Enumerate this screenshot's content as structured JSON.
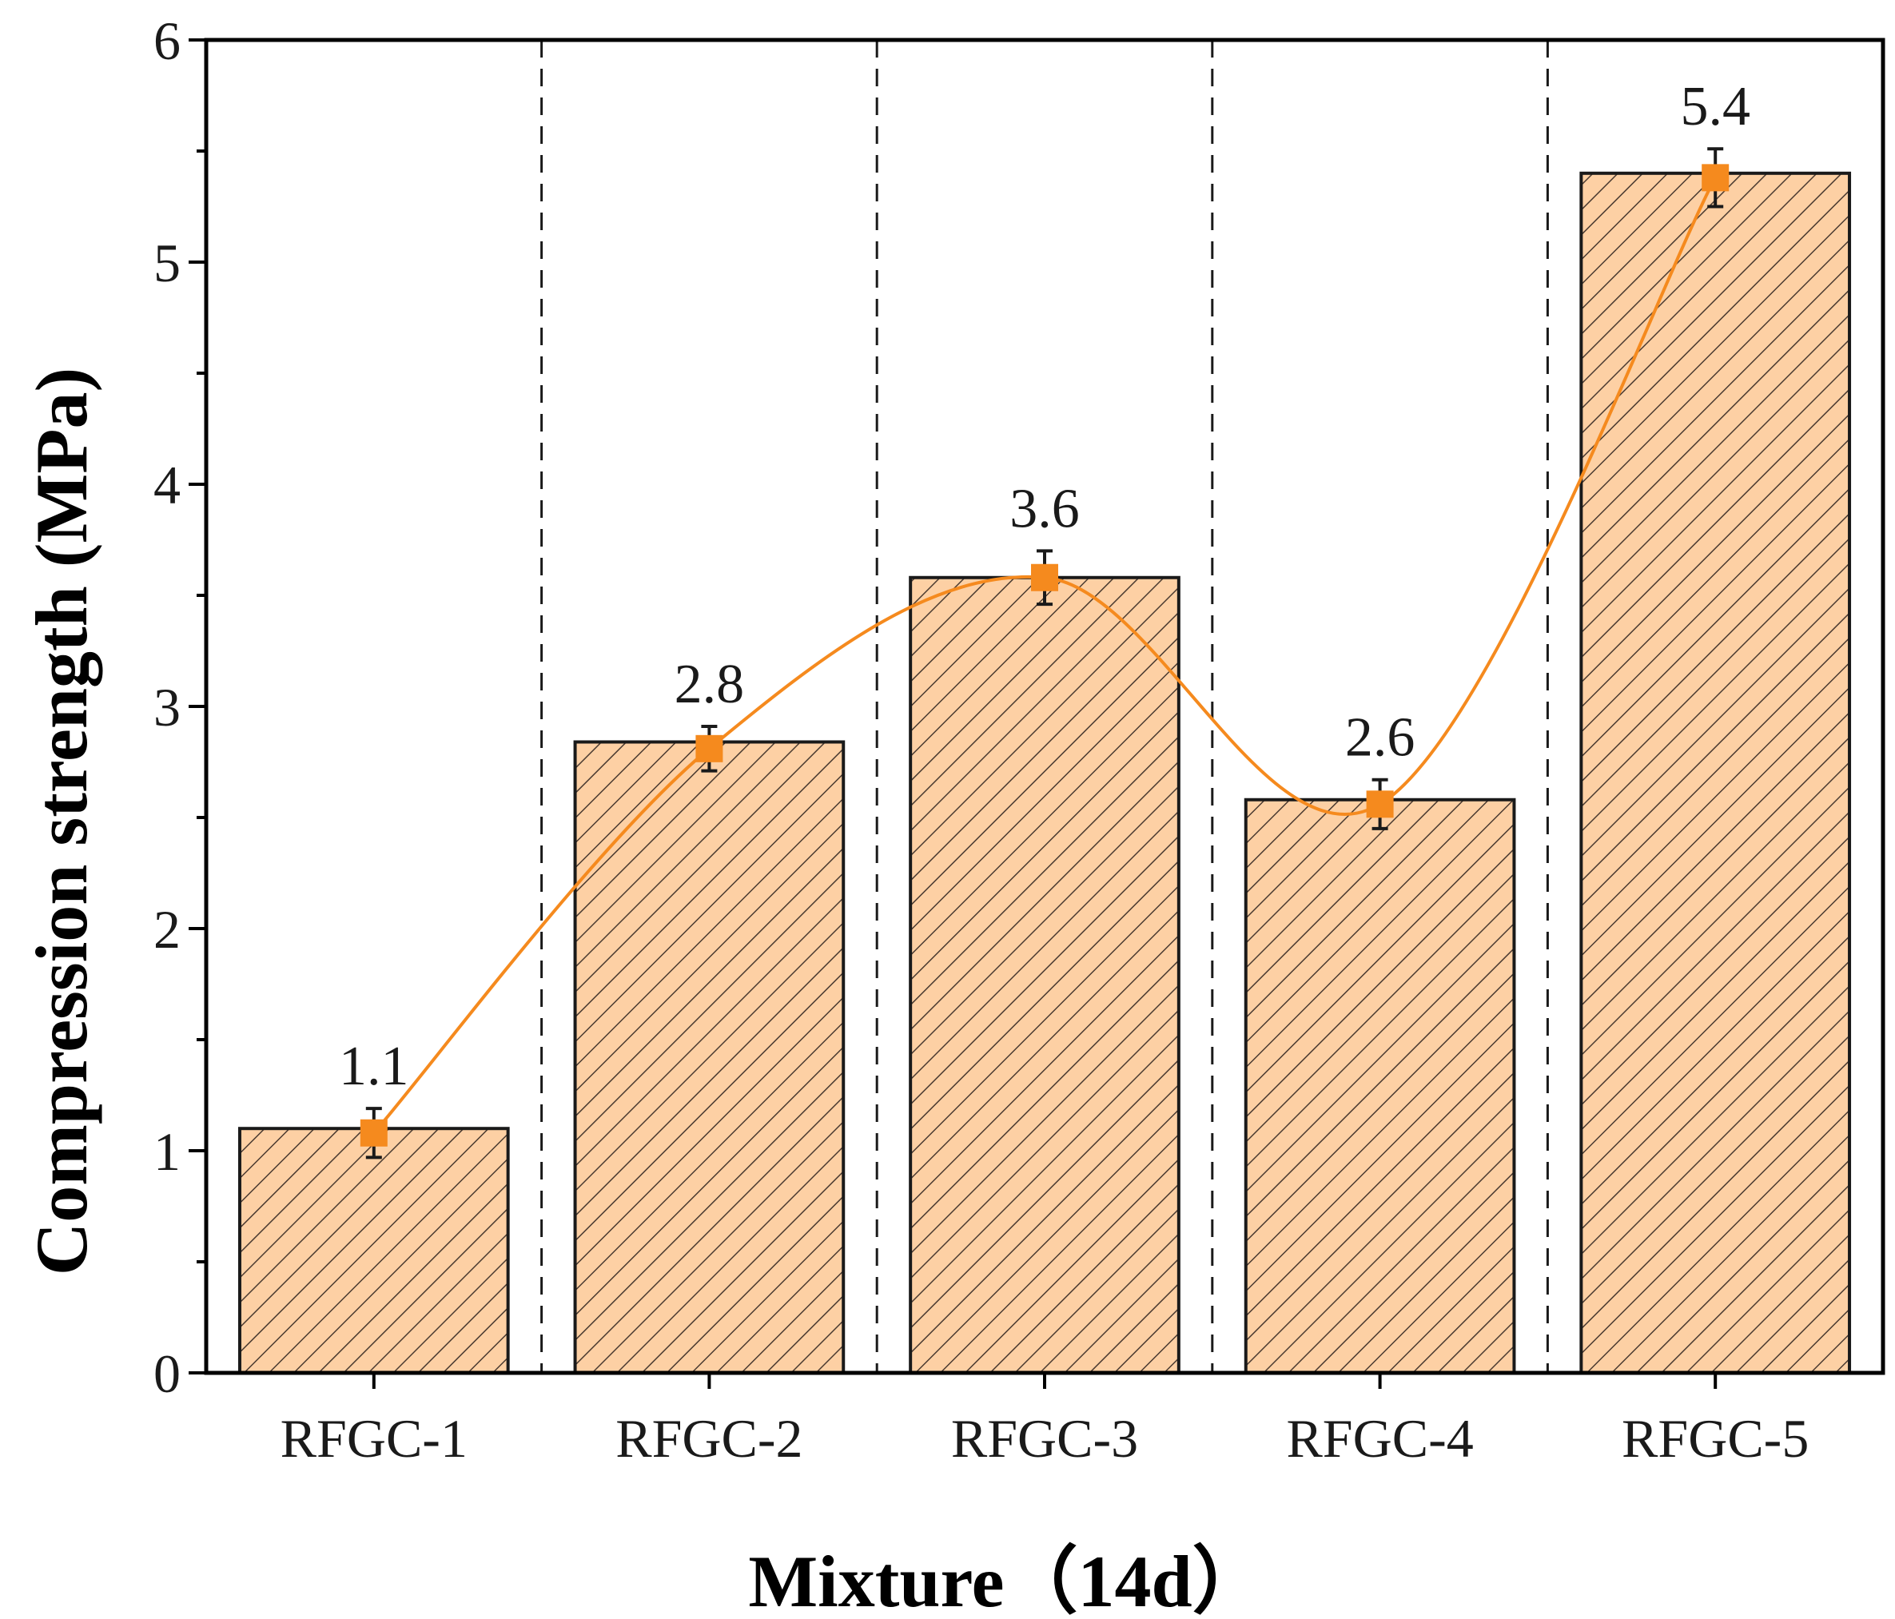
{
  "chart_data": {
    "type": "bar",
    "title": "",
    "xlabel": "Mixture（14d）",
    "ylabel": "Compression strength (MPa)",
    "categories": [
      "RFGC-1",
      "RFGC-2",
      "RFGC-3",
      "RFGC-4",
      "RFGC-5"
    ],
    "values": [
      1.1,
      2.84,
      3.58,
      2.58,
      5.4
    ],
    "data_labels": [
      "1.1",
      "2.8",
      "3.6",
      "2.6",
      "5.4"
    ],
    "line_series": {
      "type": "line-smooth",
      "values": [
        1.08,
        2.81,
        3.58,
        2.56,
        5.38
      ],
      "error": [
        0.11,
        0.1,
        0.12,
        0.11,
        0.13
      ]
    },
    "ylim": [
      0,
      6
    ],
    "yticks": [
      0,
      1,
      2,
      3,
      4,
      5,
      6
    ],
    "grid": false,
    "group_separators": "dashed vertical lines between bars",
    "colors": {
      "bar_fill": "#fdd0a4",
      "hatch": "#4a3a30",
      "bar_edge": "#1a1a1a",
      "line": "#f58a1e",
      "marker": "#f58a1e",
      "error_bar": "#1a1a1a"
    }
  }
}
